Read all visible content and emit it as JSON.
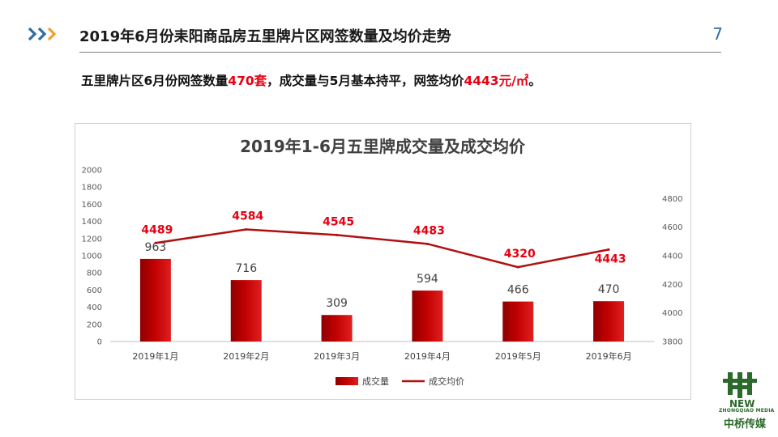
{
  "header": {
    "title": "2019年6月份耒阳商品房五里牌片区网签数量及均价走势",
    "page_number": "7",
    "arrow_icon": "triple-chevron-right-icon"
  },
  "summary": {
    "part1": "五里牌片区6月份网签数量",
    "count": "470套",
    "part2": "，成交量与5月基本持平，网签均价",
    "price": "4443元/㎡",
    "part3": "。"
  },
  "logo": {
    "new_text": "NEW",
    "sub_text": "ZHONGQIAO MEDIA",
    "main_text": "中桥传媒"
  },
  "colors": {
    "bar": "#c00000",
    "line": "#b01010",
    "price_label": "#e60012",
    "accent_blue": "#2e6da4",
    "accent_orange": "#f0a030"
  },
  "chart_data": {
    "type": "bar",
    "title": "2019年1-6月五里牌成交量及成交均价",
    "categories": [
      "2019年1月",
      "2019年2月",
      "2019年3月",
      "2019年4月",
      "2019年5月",
      "2019年6月"
    ],
    "series": [
      {
        "name": "成交量",
        "type": "bar",
        "axis": "left",
        "values": [
          963,
          716,
          309,
          594,
          466,
          470
        ]
      },
      {
        "name": "成交均价",
        "type": "line",
        "axis": "right",
        "values": [
          4489,
          4584,
          4545,
          4483,
          4320,
          4443
        ]
      }
    ],
    "ylim_left": [
      0,
      2000
    ],
    "yticks_left": [
      0,
      200,
      400,
      600,
      800,
      1000,
      1200,
      1400,
      1600,
      1800,
      2000
    ],
    "ylim_right": [
      3800,
      5000
    ],
    "yticks_right": [
      3800,
      4000,
      4200,
      4400,
      4600,
      4800
    ],
    "legend_position": "bottom",
    "grid": false
  }
}
